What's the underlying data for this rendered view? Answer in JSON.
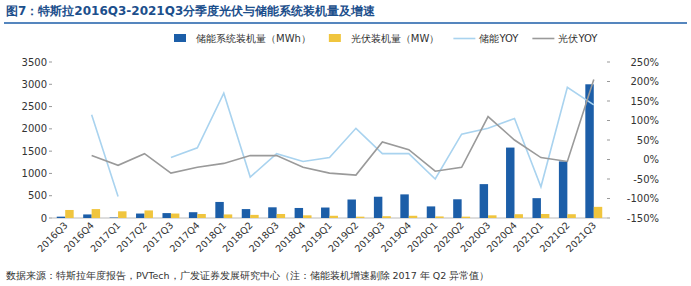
{
  "chart_data": {
    "type": "bar",
    "title": "图7：特斯拉2016Q3-2021Q3分季度光伏与储能系统装机量及增速",
    "source": "数据来源：特斯拉年度报告，PVTech，广发证券发展研究中心（注：储能装机增速剔除 2017 年 Q2 异常值）",
    "categories": [
      "2016Q3",
      "2016Q4",
      "2017Q1",
      "2017Q2",
      "2017Q3",
      "2017Q4",
      "2018Q1",
      "2018Q2",
      "2018Q3",
      "2018Q4",
      "2019Q1",
      "2019Q2",
      "2019Q3",
      "2019Q4",
      "2020Q1",
      "2020Q2",
      "2020Q3",
      "2020Q4",
      "2021Q1",
      "2021Q2",
      "2021Q3"
    ],
    "series": [
      {
        "name": "储能系统装机量（MWh）",
        "type": "bar",
        "color": "#1c5ea8",
        "values": [
          30,
          80,
          10,
          100,
          110,
          130,
          360,
          200,
          240,
          225,
          235,
          415,
          477,
          530,
          260,
          420,
          760,
          1580,
          445,
          1270,
          3000
        ]
      },
      {
        "name": "光伏装机量（MW）",
        "type": "bar",
        "color": "#f0c53e",
        "values": [
          180,
          200,
          150,
          170,
          100,
          90,
          80,
          70,
          90,
          60,
          50,
          30,
          40,
          50,
          35,
          30,
          60,
          85,
          90,
          85,
          250
        ]
      },
      {
        "name": "储能YOY",
        "type": "line",
        "axis": "y2",
        "color": "#a9d3ef",
        "values": [
          null,
          115,
          -95,
          null,
          5,
          30,
          170,
          -45,
          15,
          -5,
          5,
          80,
          15,
          15,
          -50,
          65,
          80,
          105,
          -70,
          185,
          140
        ]
      },
      {
        "name": "光伏YOY",
        "type": "line",
        "axis": "y2",
        "color": "#9a9a9a",
        "values": [
          null,
          10,
          -15,
          15,
          -35,
          -20,
          -10,
          10,
          10,
          -20,
          -35,
          -40,
          45,
          25,
          -30,
          -20,
          110,
          50,
          5,
          -5,
          205
        ]
      }
    ],
    "ylim": [
      0,
      3500
    ],
    "yticks": [
      0,
      500,
      1000,
      1500,
      2000,
      2500,
      3000,
      3500
    ],
    "y2lim": [
      -150,
      250
    ],
    "y2ticks": [
      {
        "value": -150,
        "label": "-150%"
      },
      {
        "value": -100,
        "label": "-100%"
      },
      {
        "value": -50,
        "label": "-50%"
      },
      {
        "value": 0,
        "label": "0%"
      },
      {
        "value": 50,
        "label": "50%"
      },
      {
        "value": 100,
        "label": "100%"
      },
      {
        "value": 150,
        "label": "150%"
      },
      {
        "value": 200,
        "label": "200%"
      },
      {
        "value": 250,
        "label": "250%"
      }
    ],
    "grid": false,
    "legend": "top"
  }
}
